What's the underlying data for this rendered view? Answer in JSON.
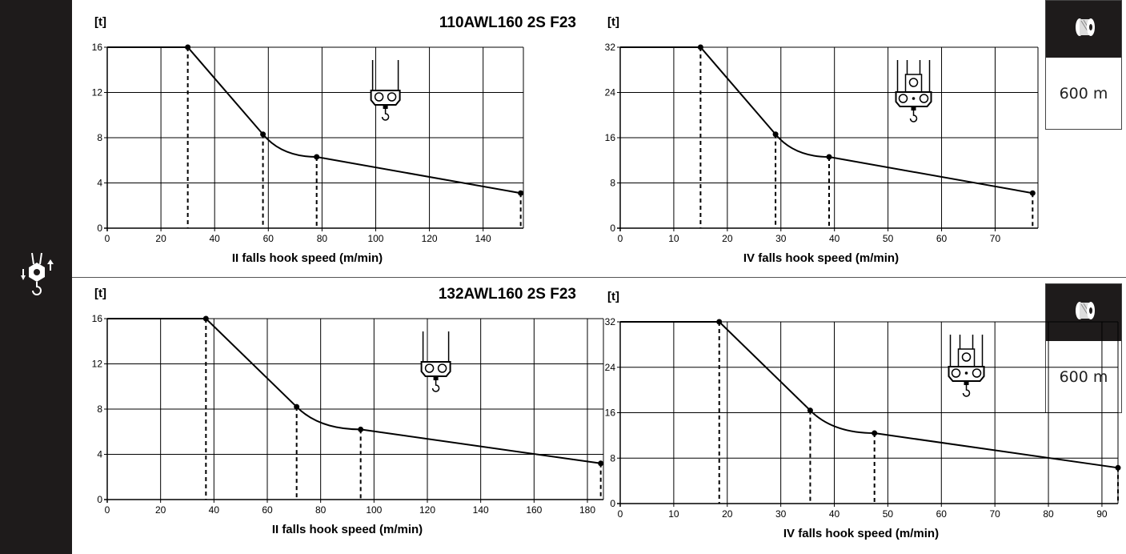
{
  "sidebar": {
    "icon": "hoist-hook-icon"
  },
  "rope_boxes": [
    {
      "icon": "rope-drum-icon",
      "length": "600 m"
    },
    {
      "icon": "rope-drum-icon",
      "length": "600 m"
    }
  ],
  "chart_data": [
    {
      "type": "line",
      "title": "110AWL160 2S F23",
      "ylabel": "[t]",
      "xlabel": "II falls hook speed (m/min)",
      "xlim": [
        0,
        155
      ],
      "ylim": [
        0,
        16
      ],
      "xticks": [
        0,
        20,
        40,
        60,
        80,
        100,
        120,
        140
      ],
      "yticks": [
        0,
        4,
        8,
        12,
        16
      ],
      "reeving_icon": "2-fall-hook-block-icon",
      "series": [
        {
          "x": [
            0,
            30,
            58,
            78,
            154
          ],
          "y": [
            16,
            16,
            8.3,
            6.3,
            3.1
          ]
        }
      ],
      "markers": [
        {
          "x": 30,
          "y": 16
        },
        {
          "x": 58,
          "y": 8.3
        },
        {
          "x": 78,
          "y": 6.3
        },
        {
          "x": 154,
          "y": 3.1
        }
      ]
    },
    {
      "type": "line",
      "title": "",
      "ylabel": "[t]",
      "xlabel": "IV falls hook speed (m/min)",
      "xlim": [
        0,
        78
      ],
      "ylim": [
        0,
        32
      ],
      "xticks": [
        0,
        10,
        20,
        30,
        40,
        50,
        60,
        70
      ],
      "yticks": [
        0,
        8,
        16,
        24,
        32
      ],
      "reeving_icon": "4-fall-hook-block-icon",
      "series": [
        {
          "x": [
            0,
            15,
            29,
            39,
            77
          ],
          "y": [
            32,
            32,
            16.6,
            12.6,
            6.2
          ]
        }
      ],
      "markers": [
        {
          "x": 15,
          "y": 32
        },
        {
          "x": 29,
          "y": 16.6
        },
        {
          "x": 39,
          "y": 12.6
        },
        {
          "x": 77,
          "y": 6.2
        }
      ]
    },
    {
      "type": "line",
      "title": "132AWL160 2S F23",
      "ylabel": "[t]",
      "xlabel": "II falls hook speed (m/min)",
      "xlim": [
        0,
        186
      ],
      "ylim": [
        0,
        16
      ],
      "xticks": [
        0,
        20,
        40,
        60,
        80,
        100,
        120,
        140,
        160,
        180
      ],
      "yticks": [
        0,
        4,
        8,
        12,
        16
      ],
      "reeving_icon": "2-fall-hook-block-icon",
      "series": [
        {
          "x": [
            0,
            37,
            71,
            95,
            185
          ],
          "y": [
            16,
            16,
            8.2,
            6.2,
            3.2
          ]
        }
      ],
      "markers": [
        {
          "x": 37,
          "y": 16
        },
        {
          "x": 71,
          "y": 8.2
        },
        {
          "x": 95,
          "y": 6.2
        },
        {
          "x": 185,
          "y": 3.2
        }
      ]
    },
    {
      "type": "line",
      "title": "",
      "ylabel": "[t]",
      "xlabel": "IV falls hook speed (m/min)",
      "xlim": [
        0,
        93
      ],
      "ylim": [
        0,
        32
      ],
      "xticks": [
        0,
        10,
        20,
        30,
        40,
        50,
        60,
        70,
        80,
        90
      ],
      "yticks": [
        0,
        8,
        16,
        24,
        32
      ],
      "reeving_icon": "4-fall-hook-block-icon",
      "series": [
        {
          "x": [
            0,
            18.5,
            35.5,
            47.5,
            93
          ],
          "y": [
            32,
            32,
            16.4,
            12.4,
            6.3
          ]
        }
      ],
      "markers": [
        {
          "x": 18.5,
          "y": 32
        },
        {
          "x": 35.5,
          "y": 16.4
        },
        {
          "x": 47.5,
          "y": 12.4
        },
        {
          "x": 93,
          "y": 6.3
        }
      ]
    }
  ]
}
